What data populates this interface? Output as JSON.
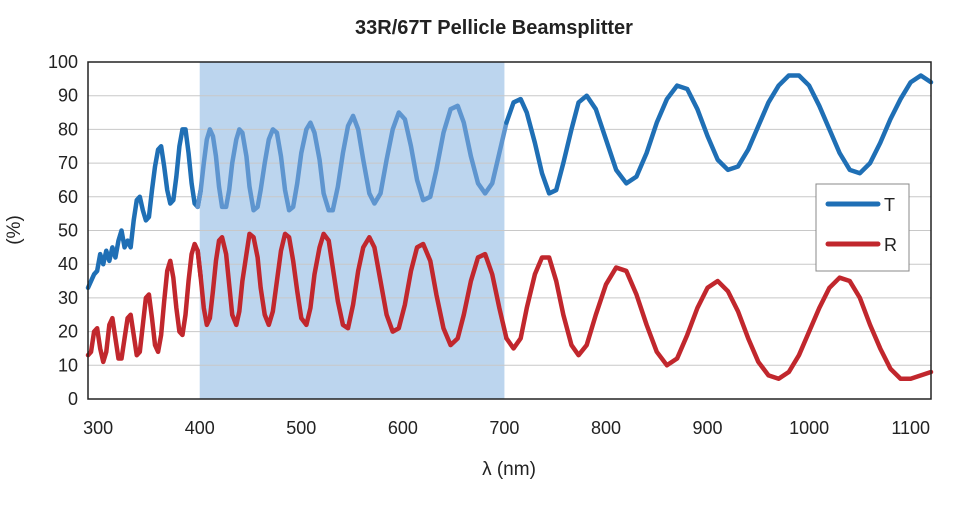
{
  "chart_data": {
    "type": "line",
    "title": "33R/67T Pellicle Beamsplitter",
    "xlabel": "λ (nm)",
    "ylabel": "(%)",
    "xlim": [
      290,
      1120
    ],
    "ylim": [
      0,
      100
    ],
    "x_ticks": [
      "300",
      "400",
      "500",
      "600",
      "700",
      "800",
      "900",
      "1000",
      "1100"
    ],
    "y_ticks": [
      "0",
      "10",
      "20",
      "30",
      "40",
      "50",
      "60",
      "70",
      "80",
      "90",
      "100"
    ],
    "grid": "horizontal",
    "legend_position": "right",
    "highlight_band": {
      "x_range": [
        400,
        700
      ],
      "color": "#bcd5ee"
    },
    "series": [
      {
        "name": "T",
        "color": "#1f6fb5",
        "faded_color": "#5e95cf",
        "points": [
          [
            290,
            33
          ],
          [
            293,
            35
          ],
          [
            296,
            37
          ],
          [
            299,
            38
          ],
          [
            302,
            43
          ],
          [
            305,
            40
          ],
          [
            308,
            44
          ],
          [
            311,
            41
          ],
          [
            314,
            45
          ],
          [
            317,
            42
          ],
          [
            320,
            47
          ],
          [
            323,
            50
          ],
          [
            326,
            45
          ],
          [
            329,
            47
          ],
          [
            332,
            45
          ],
          [
            335,
            53
          ],
          [
            338,
            59
          ],
          [
            341,
            60
          ],
          [
            344,
            56
          ],
          [
            347,
            53
          ],
          [
            350,
            54
          ],
          [
            353,
            62
          ],
          [
            356,
            69
          ],
          [
            359,
            74
          ],
          [
            362,
            75
          ],
          [
            365,
            69
          ],
          [
            368,
            62
          ],
          [
            371,
            58
          ],
          [
            374,
            59
          ],
          [
            377,
            66
          ],
          [
            380,
            75
          ],
          [
            383,
            80
          ],
          [
            386,
            80
          ],
          [
            389,
            73
          ],
          [
            392,
            64
          ],
          [
            395,
            58
          ],
          [
            398,
            57
          ],
          [
            401,
            62
          ],
          [
            404,
            70
          ],
          [
            407,
            77
          ],
          [
            410,
            80
          ],
          [
            413,
            78
          ],
          [
            416,
            72
          ],
          [
            419,
            63
          ],
          [
            422,
            57
          ],
          [
            426,
            57
          ],
          [
            429,
            62
          ],
          [
            432,
            70
          ],
          [
            436,
            77
          ],
          [
            439,
            80
          ],
          [
            442,
            79
          ],
          [
            446,
            72
          ],
          [
            449,
            63
          ],
          [
            453,
            56
          ],
          [
            457,
            57
          ],
          [
            460,
            62
          ],
          [
            464,
            70
          ],
          [
            468,
            77
          ],
          [
            472,
            80
          ],
          [
            476,
            79
          ],
          [
            480,
            72
          ],
          [
            484,
            62
          ],
          [
            488,
            56
          ],
          [
            492,
            57
          ],
          [
            496,
            64
          ],
          [
            500,
            73
          ],
          [
            505,
            80
          ],
          [
            509,
            82
          ],
          [
            513,
            79
          ],
          [
            518,
            71
          ],
          [
            522,
            61
          ],
          [
            527,
            56
          ],
          [
            531,
            56
          ],
          [
            536,
            63
          ],
          [
            541,
            73
          ],
          [
            546,
            81
          ],
          [
            551,
            84
          ],
          [
            556,
            80
          ],
          [
            561,
            71
          ],
          [
            567,
            61
          ],
          [
            572,
            58
          ],
          [
            578,
            61
          ],
          [
            584,
            71
          ],
          [
            590,
            80
          ],
          [
            596,
            85
          ],
          [
            602,
            83
          ],
          [
            608,
            75
          ],
          [
            614,
            65
          ],
          [
            620,
            59
          ],
          [
            627,
            60
          ],
          [
            633,
            68
          ],
          [
            640,
            79
          ],
          [
            647,
            86
          ],
          [
            654,
            87
          ],
          [
            660,
            82
          ],
          [
            667,
            72
          ],
          [
            674,
            64
          ],
          [
            681,
            61
          ],
          [
            688,
            64
          ],
          [
            695,
            73
          ],
          [
            702,
            82
          ],
          [
            709,
            88
          ],
          [
            716,
            89
          ],
          [
            722,
            85
          ],
          [
            730,
            76
          ],
          [
            737,
            67
          ],
          [
            744,
            61
          ],
          [
            751,
            62
          ],
          [
            758,
            70
          ],
          [
            766,
            80
          ],
          [
            773,
            88
          ],
          [
            781,
            90
          ],
          [
            790,
            86
          ],
          [
            800,
            77
          ],
          [
            810,
            68
          ],
          [
            820,
            64
          ],
          [
            830,
            66
          ],
          [
            840,
            73
          ],
          [
            850,
            82
          ],
          [
            860,
            89
          ],
          [
            870,
            93
          ],
          [
            880,
            92
          ],
          [
            890,
            86
          ],
          [
            900,
            78
          ],
          [
            910,
            71
          ],
          [
            920,
            68
          ],
          [
            930,
            69
          ],
          [
            940,
            74
          ],
          [
            950,
            81
          ],
          [
            960,
            88
          ],
          [
            970,
            93
          ],
          [
            980,
            96
          ],
          [
            990,
            96
          ],
          [
            1000,
            93
          ],
          [
            1010,
            87
          ],
          [
            1020,
            80
          ],
          [
            1030,
            73
          ],
          [
            1040,
            68
          ],
          [
            1050,
            67
          ],
          [
            1060,
            70
          ],
          [
            1070,
            76
          ],
          [
            1080,
            83
          ],
          [
            1090,
            89
          ],
          [
            1100,
            94
          ],
          [
            1110,
            96
          ],
          [
            1120,
            94
          ]
        ]
      },
      {
        "name": "R",
        "color": "#c1272d",
        "faded_color": "#c1272d",
        "points": [
          [
            290,
            13
          ],
          [
            293,
            14
          ],
          [
            296,
            20
          ],
          [
            299,
            21
          ],
          [
            302,
            15
          ],
          [
            305,
            11
          ],
          [
            308,
            14
          ],
          [
            311,
            22
          ],
          [
            314,
            24
          ],
          [
            317,
            18
          ],
          [
            320,
            12
          ],
          [
            323,
            12
          ],
          [
            326,
            18
          ],
          [
            329,
            24
          ],
          [
            332,
            25
          ],
          [
            335,
            19
          ],
          [
            338,
            13
          ],
          [
            341,
            14
          ],
          [
            344,
            22
          ],
          [
            347,
            30
          ],
          [
            350,
            31
          ],
          [
            353,
            24
          ],
          [
            356,
            16
          ],
          [
            359,
            14
          ],
          [
            362,
            19
          ],
          [
            365,
            29
          ],
          [
            368,
            38
          ],
          [
            371,
            41
          ],
          [
            374,
            36
          ],
          [
            377,
            27
          ],
          [
            380,
            20
          ],
          [
            383,
            19
          ],
          [
            386,
            25
          ],
          [
            389,
            35
          ],
          [
            392,
            43
          ],
          [
            395,
            46
          ],
          [
            398,
            44
          ],
          [
            401,
            36
          ],
          [
            404,
            27
          ],
          [
            407,
            22
          ],
          [
            410,
            24
          ],
          [
            413,
            32
          ],
          [
            416,
            41
          ],
          [
            419,
            47
          ],
          [
            422,
            48
          ],
          [
            426,
            43
          ],
          [
            429,
            34
          ],
          [
            432,
            25
          ],
          [
            436,
            22
          ],
          [
            439,
            26
          ],
          [
            442,
            35
          ],
          [
            446,
            43
          ],
          [
            449,
            49
          ],
          [
            453,
            48
          ],
          [
            457,
            42
          ],
          [
            460,
            33
          ],
          [
            464,
            25
          ],
          [
            468,
            22
          ],
          [
            472,
            26
          ],
          [
            476,
            35
          ],
          [
            480,
            44
          ],
          [
            484,
            49
          ],
          [
            488,
            48
          ],
          [
            492,
            41
          ],
          [
            496,
            32
          ],
          [
            500,
            24
          ],
          [
            505,
            22
          ],
          [
            509,
            27
          ],
          [
            513,
            37
          ],
          [
            518,
            45
          ],
          [
            522,
            49
          ],
          [
            527,
            47
          ],
          [
            531,
            39
          ],
          [
            536,
            29
          ],
          [
            541,
            22
          ],
          [
            546,
            21
          ],
          [
            551,
            28
          ],
          [
            556,
            38
          ],
          [
            561,
            45
          ],
          [
            567,
            48
          ],
          [
            572,
            45
          ],
          [
            578,
            35
          ],
          [
            584,
            25
          ],
          [
            590,
            20
          ],
          [
            596,
            21
          ],
          [
            602,
            28
          ],
          [
            608,
            38
          ],
          [
            614,
            45
          ],
          [
            620,
            46
          ],
          [
            627,
            41
          ],
          [
            633,
            31
          ],
          [
            640,
            21
          ],
          [
            647,
            16
          ],
          [
            654,
            18
          ],
          [
            660,
            25
          ],
          [
            667,
            35
          ],
          [
            674,
            42
          ],
          [
            681,
            43
          ],
          [
            688,
            37
          ],
          [
            695,
            27
          ],
          [
            702,
            18
          ],
          [
            709,
            15
          ],
          [
            716,
            18
          ],
          [
            722,
            27
          ],
          [
            730,
            37
          ],
          [
            737,
            42
          ],
          [
            744,
            42
          ],
          [
            751,
            35
          ],
          [
            758,
            25
          ],
          [
            766,
            16
          ],
          [
            773,
            13
          ],
          [
            781,
            16
          ],
          [
            790,
            25
          ],
          [
            800,
            34
          ],
          [
            810,
            39
          ],
          [
            820,
            38
          ],
          [
            830,
            31
          ],
          [
            840,
            22
          ],
          [
            850,
            14
          ],
          [
            860,
            10
          ],
          [
            870,
            12
          ],
          [
            880,
            19
          ],
          [
            890,
            27
          ],
          [
            900,
            33
          ],
          [
            910,
            35
          ],
          [
            920,
            32
          ],
          [
            930,
            26
          ],
          [
            940,
            18
          ],
          [
            950,
            11
          ],
          [
            960,
            7
          ],
          [
            970,
            6
          ],
          [
            980,
            8
          ],
          [
            990,
            13
          ],
          [
            1000,
            20
          ],
          [
            1010,
            27
          ],
          [
            1020,
            33
          ],
          [
            1030,
            36
          ],
          [
            1040,
            35
          ],
          [
            1050,
            30
          ],
          [
            1060,
            22
          ],
          [
            1070,
            15
          ],
          [
            1080,
            9
          ],
          [
            1090,
            6
          ],
          [
            1100,
            6
          ],
          [
            1110,
            7
          ],
          [
            1120,
            8
          ]
        ]
      }
    ]
  }
}
